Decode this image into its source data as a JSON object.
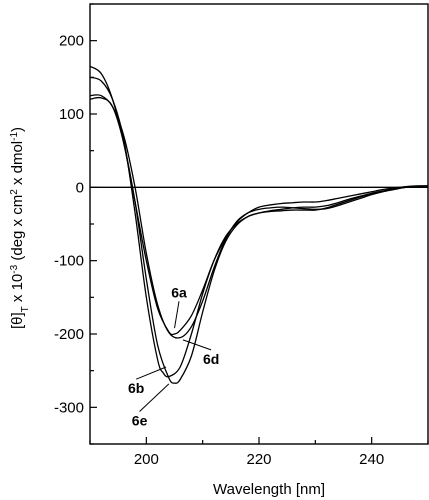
{
  "chart_data": {
    "type": "line",
    "title": "",
    "xlabel": "Wavelength [nm]",
    "ylabel_parts": {
      "a": "[θ]",
      "sub": "T",
      "b": " x 10",
      "sup1": "-3",
      "c": " (deg x cm",
      "sup2": "2",
      "d": " x dmol",
      "sup3": "-1",
      "e": ")"
    },
    "xlim": [
      190,
      250
    ],
    "ylim": [
      -350,
      250
    ],
    "x_ticks": [
      200,
      220,
      240
    ],
    "y_ticks": [
      -300,
      -200,
      -100,
      0,
      100,
      200
    ],
    "grid": false,
    "legend": "none",
    "zero_line": true,
    "series": [
      {
        "name": "6a",
        "x": [
          190,
          192,
          194,
          196,
          198,
          200,
          202,
          204,
          205,
          206,
          208,
          210,
          212,
          214,
          216,
          218,
          220,
          222,
          224,
          226,
          228,
          230,
          232,
          234,
          236,
          238,
          240,
          242,
          244,
          246,
          248,
          250
        ],
        "y": [
          165,
          155,
          120,
          60,
          -20,
          -100,
          -165,
          -197,
          -200,
          -195,
          -175,
          -140,
          -100,
          -70,
          -48,
          -35,
          -27,
          -24,
          -22,
          -21,
          -20,
          -20,
          -18,
          -15,
          -12,
          -9,
          -6,
          -3,
          -1,
          1,
          2,
          2
        ]
      },
      {
        "name": "6b",
        "x": [
          190,
          192,
          194,
          196,
          198,
          200,
          202,
          203,
          204,
          206,
          208,
          210,
          212,
          214,
          216,
          218,
          220,
          222,
          224,
          226,
          228,
          230,
          232,
          234,
          236,
          238,
          240,
          242,
          244,
          246,
          248,
          250
        ],
        "y": [
          150,
          145,
          120,
          65,
          -35,
          -150,
          -235,
          -253,
          -258,
          -245,
          -200,
          -145,
          -100,
          -68,
          -50,
          -40,
          -35,
          -32,
          -30,
          -28,
          -27,
          -27,
          -25,
          -21,
          -16,
          -12,
          -8,
          -5,
          -2,
          0,
          1,
          2
        ]
      },
      {
        "name": "6d",
        "x": [
          190,
          192,
          194,
          196,
          198,
          200,
          202,
          204,
          206,
          208,
          210,
          212,
          214,
          216,
          218,
          220,
          222,
          224,
          226,
          228,
          230,
          232,
          234,
          236,
          238,
          240,
          242,
          244,
          246,
          248,
          250
        ],
        "y": [
          125,
          125,
          110,
          70,
          0,
          -90,
          -160,
          -198,
          -205,
          -190,
          -155,
          -110,
          -72,
          -47,
          -35,
          -30,
          -28,
          -27,
          -28,
          -29,
          -30,
          -29,
          -25,
          -20,
          -15,
          -10,
          -6,
          -3,
          0,
          1,
          2
        ]
      },
      {
        "name": "6e",
        "x": [
          190,
          192,
          194,
          196,
          198,
          200,
          202,
          204,
          205,
          206,
          208,
          210,
          212,
          214,
          216,
          218,
          220,
          222,
          224,
          226,
          228,
          230,
          232,
          234,
          236,
          238,
          240,
          242,
          244,
          246,
          248,
          250
        ],
        "y": [
          120,
          122,
          110,
          60,
          -20,
          -125,
          -215,
          -260,
          -267,
          -262,
          -230,
          -170,
          -115,
          -75,
          -52,
          -40,
          -35,
          -33,
          -32,
          -31,
          -31,
          -31,
          -28,
          -23,
          -18,
          -13,
          -9,
          -5,
          -2,
          0,
          1,
          2
        ]
      }
    ],
    "annotations": [
      {
        "text": "6a",
        "x": 205,
        "y": -192,
        "tx": 205.8,
        "ty": -150,
        "ha": "middle"
      },
      {
        "text": "6d",
        "x": 206.5,
        "y": -208,
        "tx": 211.5,
        "ty": -238,
        "ha": "middle"
      },
      {
        "text": "6b",
        "x": 203.5,
        "y": -245,
        "tx": 198.2,
        "ty": -278,
        "ha": "middle"
      },
      {
        "text": "6e",
        "x": 204,
        "y": -268,
        "tx": 198.8,
        "ty": -322,
        "ha": "middle"
      }
    ]
  }
}
